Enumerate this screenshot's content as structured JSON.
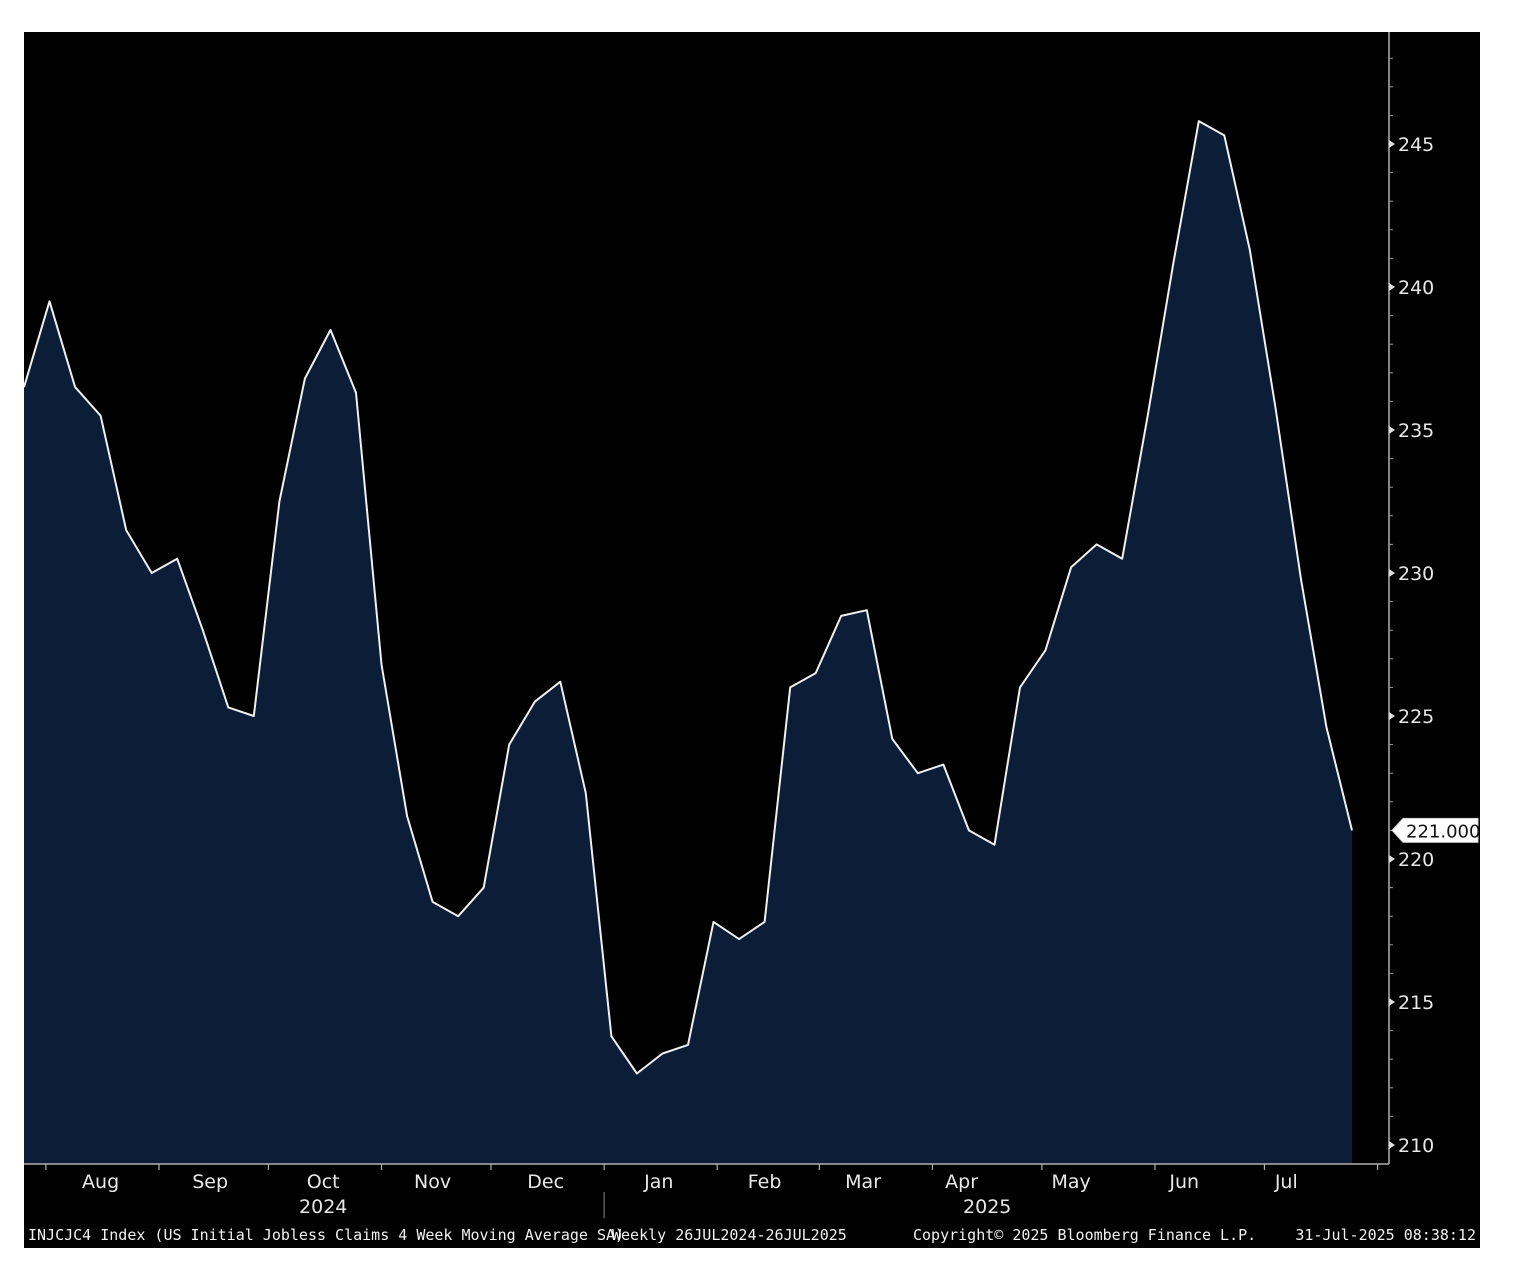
{
  "chart_data": {
    "type": "area",
    "series": [
      {
        "x": [
          "2024-07-26",
          "2024-08-02",
          "2024-08-09",
          "2024-08-16",
          "2024-08-23",
          "2024-08-30",
          "2024-09-06",
          "2024-09-13",
          "2024-09-20",
          "2024-09-27",
          "2024-10-04",
          "2024-10-11",
          "2024-10-18",
          "2024-10-25",
          "2024-11-01",
          "2024-11-08",
          "2024-11-15",
          "2024-11-22",
          "2024-11-29",
          "2024-12-06",
          "2024-12-13",
          "2024-12-20",
          "2024-12-27",
          "2025-01-03",
          "2025-01-10",
          "2025-01-17",
          "2025-01-24",
          "2025-01-31",
          "2025-02-07",
          "2025-02-14",
          "2025-02-21",
          "2025-02-28",
          "2025-03-07",
          "2025-03-14",
          "2025-03-21",
          "2025-03-28",
          "2025-04-04",
          "2025-04-11",
          "2025-04-18",
          "2025-04-25",
          "2025-05-02",
          "2025-05-09",
          "2025-05-16",
          "2025-05-23",
          "2025-05-30",
          "2025-06-06",
          "2025-06-13",
          "2025-06-20",
          "2025-06-27",
          "2025-07-04",
          "2025-07-11",
          "2025-07-18",
          "2025-07-25"
        ],
        "values": [
          236.5,
          239.5,
          236.5,
          235.5,
          231.5,
          230.0,
          230.5,
          228.0,
          225.3,
          225.0,
          232.5,
          236.8,
          238.5,
          236.3,
          226.8,
          221.5,
          218.5,
          218.0,
          219.0,
          224.0,
          225.5,
          226.2,
          222.3,
          213.8,
          212.5,
          213.2,
          213.5,
          217.8,
          217.2,
          217.8,
          226.0,
          226.5,
          228.5,
          228.7,
          224.2,
          223.0,
          223.3,
          221.0,
          220.5,
          226.0,
          227.3,
          230.2,
          231.0,
          230.5,
          235.5,
          240.8,
          245.8,
          245.3,
          241.3,
          235.8,
          229.8,
          224.6,
          221.0
        ]
      }
    ],
    "ylim": [
      209,
      249
    ],
    "yticks": [
      210,
      215,
      220,
      225,
      230,
      235,
      240,
      245
    ],
    "month_labels": [
      {
        "label": "Aug",
        "date": "2024-08-16"
      },
      {
        "label": "Sep",
        "date": "2024-09-15"
      },
      {
        "label": "Oct",
        "date": "2024-10-16"
      },
      {
        "label": "Nov",
        "date": "2024-11-15"
      },
      {
        "label": "Dec",
        "date": "2024-12-16"
      },
      {
        "label": "Jan",
        "date": "2025-01-16"
      },
      {
        "label": "Feb",
        "date": "2025-02-14"
      },
      {
        "label": "Mar",
        "date": "2025-03-13"
      },
      {
        "label": "Apr",
        "date": "2025-04-09"
      },
      {
        "label": "May",
        "date": "2025-05-09"
      },
      {
        "label": "Jun",
        "date": "2025-06-09"
      },
      {
        "label": "Jul",
        "date": "2025-07-07"
      }
    ],
    "month_boundaries": [
      "2024-08-01",
      "2024-09-01",
      "2024-10-01",
      "2024-11-01",
      "2024-12-01",
      "2025-01-01",
      "2025-02-01",
      "2025-03-01",
      "2025-04-01",
      "2025-05-01",
      "2025-06-01",
      "2025-07-01",
      "2025-08-01"
    ],
    "year_labels": [
      {
        "label": "2024",
        "date": "2024-10-16"
      },
      {
        "label": "2025",
        "date": "2025-04-16"
      }
    ],
    "year_divider": "2025-01-01",
    "last_value_label": "221.000",
    "grid": false
  },
  "footer": {
    "index": "INJCJC4 Index (US Initial Jobless Claims 4 Week Moving Average SA)",
    "range": "Weekly 26JUL2024-26JUL2025",
    "copyright": "Copyright© 2025 Bloomberg Finance L.P.",
    "timestamp": "31-Jul-2025 08:38:12"
  },
  "colors": {
    "background": "#000000",
    "area_fill": "#0c1d38",
    "line": "#f0f0f0",
    "text": "#e8e8e8"
  }
}
